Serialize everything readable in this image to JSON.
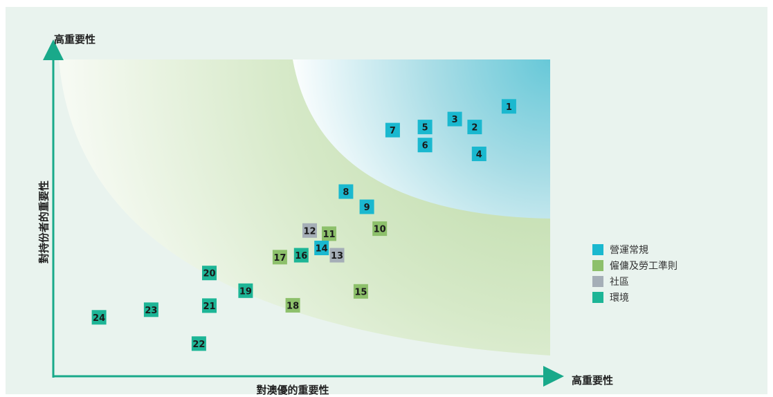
{
  "chart_data": {
    "type": "scatter",
    "y_axis_label": "對持份者的重要性",
    "y_axis_high_label": "高重要性",
    "x_axis_label": "對澳優的重要性",
    "x_axis_high_label": "高重要性",
    "categories": [
      {
        "name": "營運常規",
        "color": "#1ab8cf"
      },
      {
        "name": "僱傭及勞工準則",
        "color": "#8dc06b"
      },
      {
        "name": "社區",
        "color": "#a5aeb7"
      },
      {
        "name": "環境",
        "color": "#1db596"
      }
    ],
    "points": [
      {
        "id": "1",
        "category": "營運常規",
        "x": 0.917,
        "y": 0.852
      },
      {
        "id": "2",
        "category": "營運常規",
        "x": 0.848,
        "y": 0.787
      },
      {
        "id": "3",
        "category": "營運常規",
        "x": 0.808,
        "y": 0.812
      },
      {
        "id": "4",
        "category": "營運常規",
        "x": 0.857,
        "y": 0.702
      },
      {
        "id": "5",
        "category": "營運常規",
        "x": 0.748,
        "y": 0.787
      },
      {
        "id": "6",
        "category": "營運常規",
        "x": 0.748,
        "y": 0.73
      },
      {
        "id": "7",
        "category": "營運常規",
        "x": 0.683,
        "y": 0.777
      },
      {
        "id": "8",
        "category": "營運常規",
        "x": 0.589,
        "y": 0.583
      },
      {
        "id": "9",
        "category": "營運常規",
        "x": 0.631,
        "y": 0.535
      },
      {
        "id": "10",
        "category": "僱傭及勞工準則",
        "x": 0.657,
        "y": 0.466
      },
      {
        "id": "11",
        "category": "僱傭及勞工準則",
        "x": 0.555,
        "y": 0.45
      },
      {
        "id": "12",
        "category": "社區",
        "x": 0.516,
        "y": 0.46
      },
      {
        "id": "13",
        "category": "社區",
        "x": 0.571,
        "y": 0.382
      },
      {
        "id": "14",
        "category": "營運常規",
        "x": 0.54,
        "y": 0.405
      },
      {
        "id": "15",
        "category": "僱傭及勞工準則",
        "x": 0.619,
        "y": 0.268
      },
      {
        "id": "16",
        "category": "環境",
        "x": 0.499,
        "y": 0.382
      },
      {
        "id": "17",
        "category": "僱傭及勞工準則",
        "x": 0.456,
        "y": 0.376
      },
      {
        "id": "18",
        "category": "僱傭及勞工準則",
        "x": 0.482,
        "y": 0.224
      },
      {
        "id": "19",
        "category": "環境",
        "x": 0.387,
        "y": 0.27
      },
      {
        "id": "20",
        "category": "環境",
        "x": 0.314,
        "y": 0.326
      },
      {
        "id": "21",
        "category": "環境",
        "x": 0.314,
        "y": 0.223
      },
      {
        "id": "22",
        "category": "環境",
        "x": 0.293,
        "y": 0.103
      },
      {
        "id": "23",
        "category": "環境",
        "x": 0.197,
        "y": 0.21
      },
      {
        "id": "24",
        "category": "環境",
        "x": 0.092,
        "y": 0.186
      }
    ]
  }
}
